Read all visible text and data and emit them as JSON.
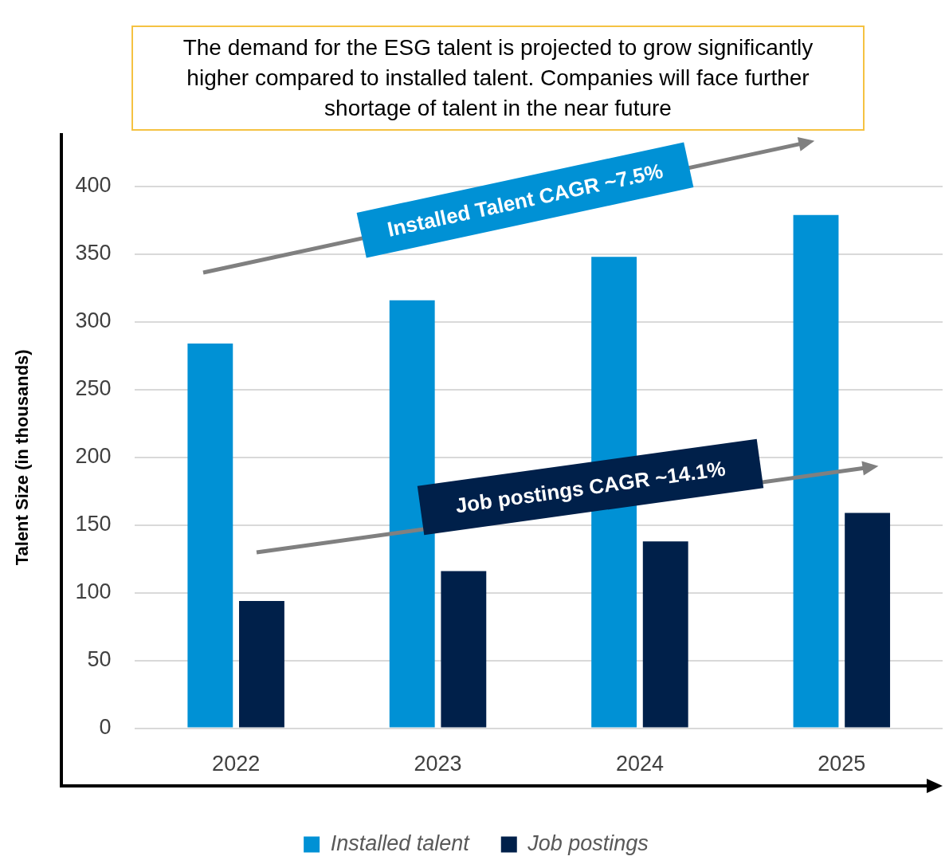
{
  "chart_data": {
    "type": "bar",
    "title": "The demand for the ESG talent is projected to grow significantly higher compared to installed talent. Companies will face further shortage of talent in the near future",
    "categories": [
      "2022",
      "2023",
      "2024",
      "2025"
    ],
    "series": [
      {
        "name": "Installed talent",
        "color": "#0091d5",
        "values": [
          284,
          316,
          348,
          379
        ]
      },
      {
        "name": "Job postings",
        "color": "#00204a",
        "values": [
          94,
          116,
          138,
          159
        ]
      }
    ],
    "ylabel": "Talent Size (in thousands)",
    "ylim": [
      0,
      400
    ],
    "yticks": [
      0,
      50,
      100,
      150,
      200,
      250,
      300,
      350,
      400
    ],
    "grid": "y",
    "legend": "bottom",
    "annotations": [
      "Installed Talent CAGR ~7.5%",
      "Job postings CAGR ~14.1%"
    ]
  }
}
